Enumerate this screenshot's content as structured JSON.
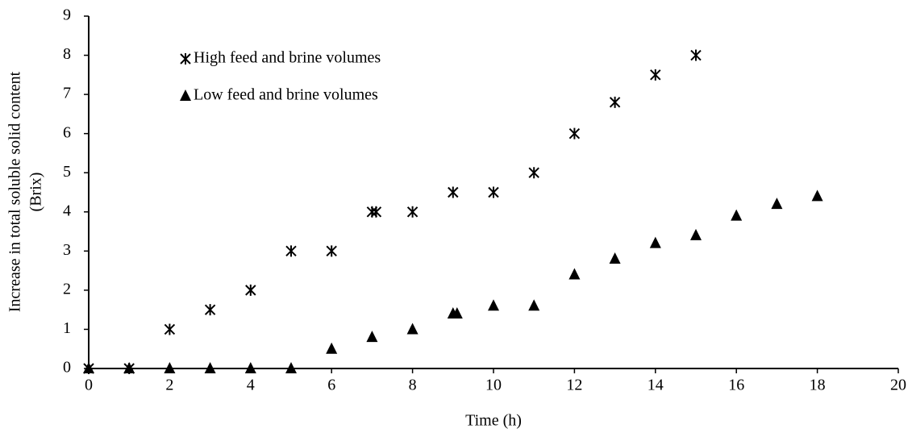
{
  "chart_data": {
    "type": "scatter",
    "xlabel": "Time (h)",
    "ylabel": [
      "Increase in total soluble solid content",
      "(Brix)"
    ],
    "xlim": [
      0,
      20
    ],
    "xticks": [
      0,
      2,
      4,
      6,
      8,
      10,
      12,
      14,
      16,
      18,
      20
    ],
    "ylim": [
      0,
      9
    ],
    "yticks": [
      0,
      1,
      2,
      3,
      4,
      5,
      6,
      7,
      8,
      9
    ],
    "grid": false,
    "legend": "upper left",
    "series": [
      {
        "name": "High feed and brine volumes",
        "marker": "asterisk",
        "color": "#000000",
        "x": [
          0,
          1,
          2,
          3,
          4,
          5,
          6,
          7,
          7.1,
          8,
          9,
          10,
          11,
          12,
          13,
          14,
          15
        ],
        "values": [
          0,
          0,
          1,
          1.5,
          2,
          3,
          3,
          4,
          4,
          4,
          4.5,
          4.5,
          5,
          6,
          6.8,
          7.5,
          8
        ]
      },
      {
        "name": "Low feed and brine volumes",
        "marker": "triangle",
        "color": "#000000",
        "x": [
          0,
          1,
          2,
          3,
          4,
          5,
          6,
          7,
          8,
          9,
          9.1,
          10,
          11,
          12,
          13,
          14,
          15,
          16,
          17,
          18
        ],
        "values": [
          0,
          0,
          0,
          0,
          0,
          0,
          0.5,
          0.8,
          1,
          1.4,
          1.4,
          1.6,
          1.6,
          2.4,
          2.8,
          3.2,
          3.4,
          3.9,
          4.2,
          4.4
        ]
      }
    ]
  }
}
